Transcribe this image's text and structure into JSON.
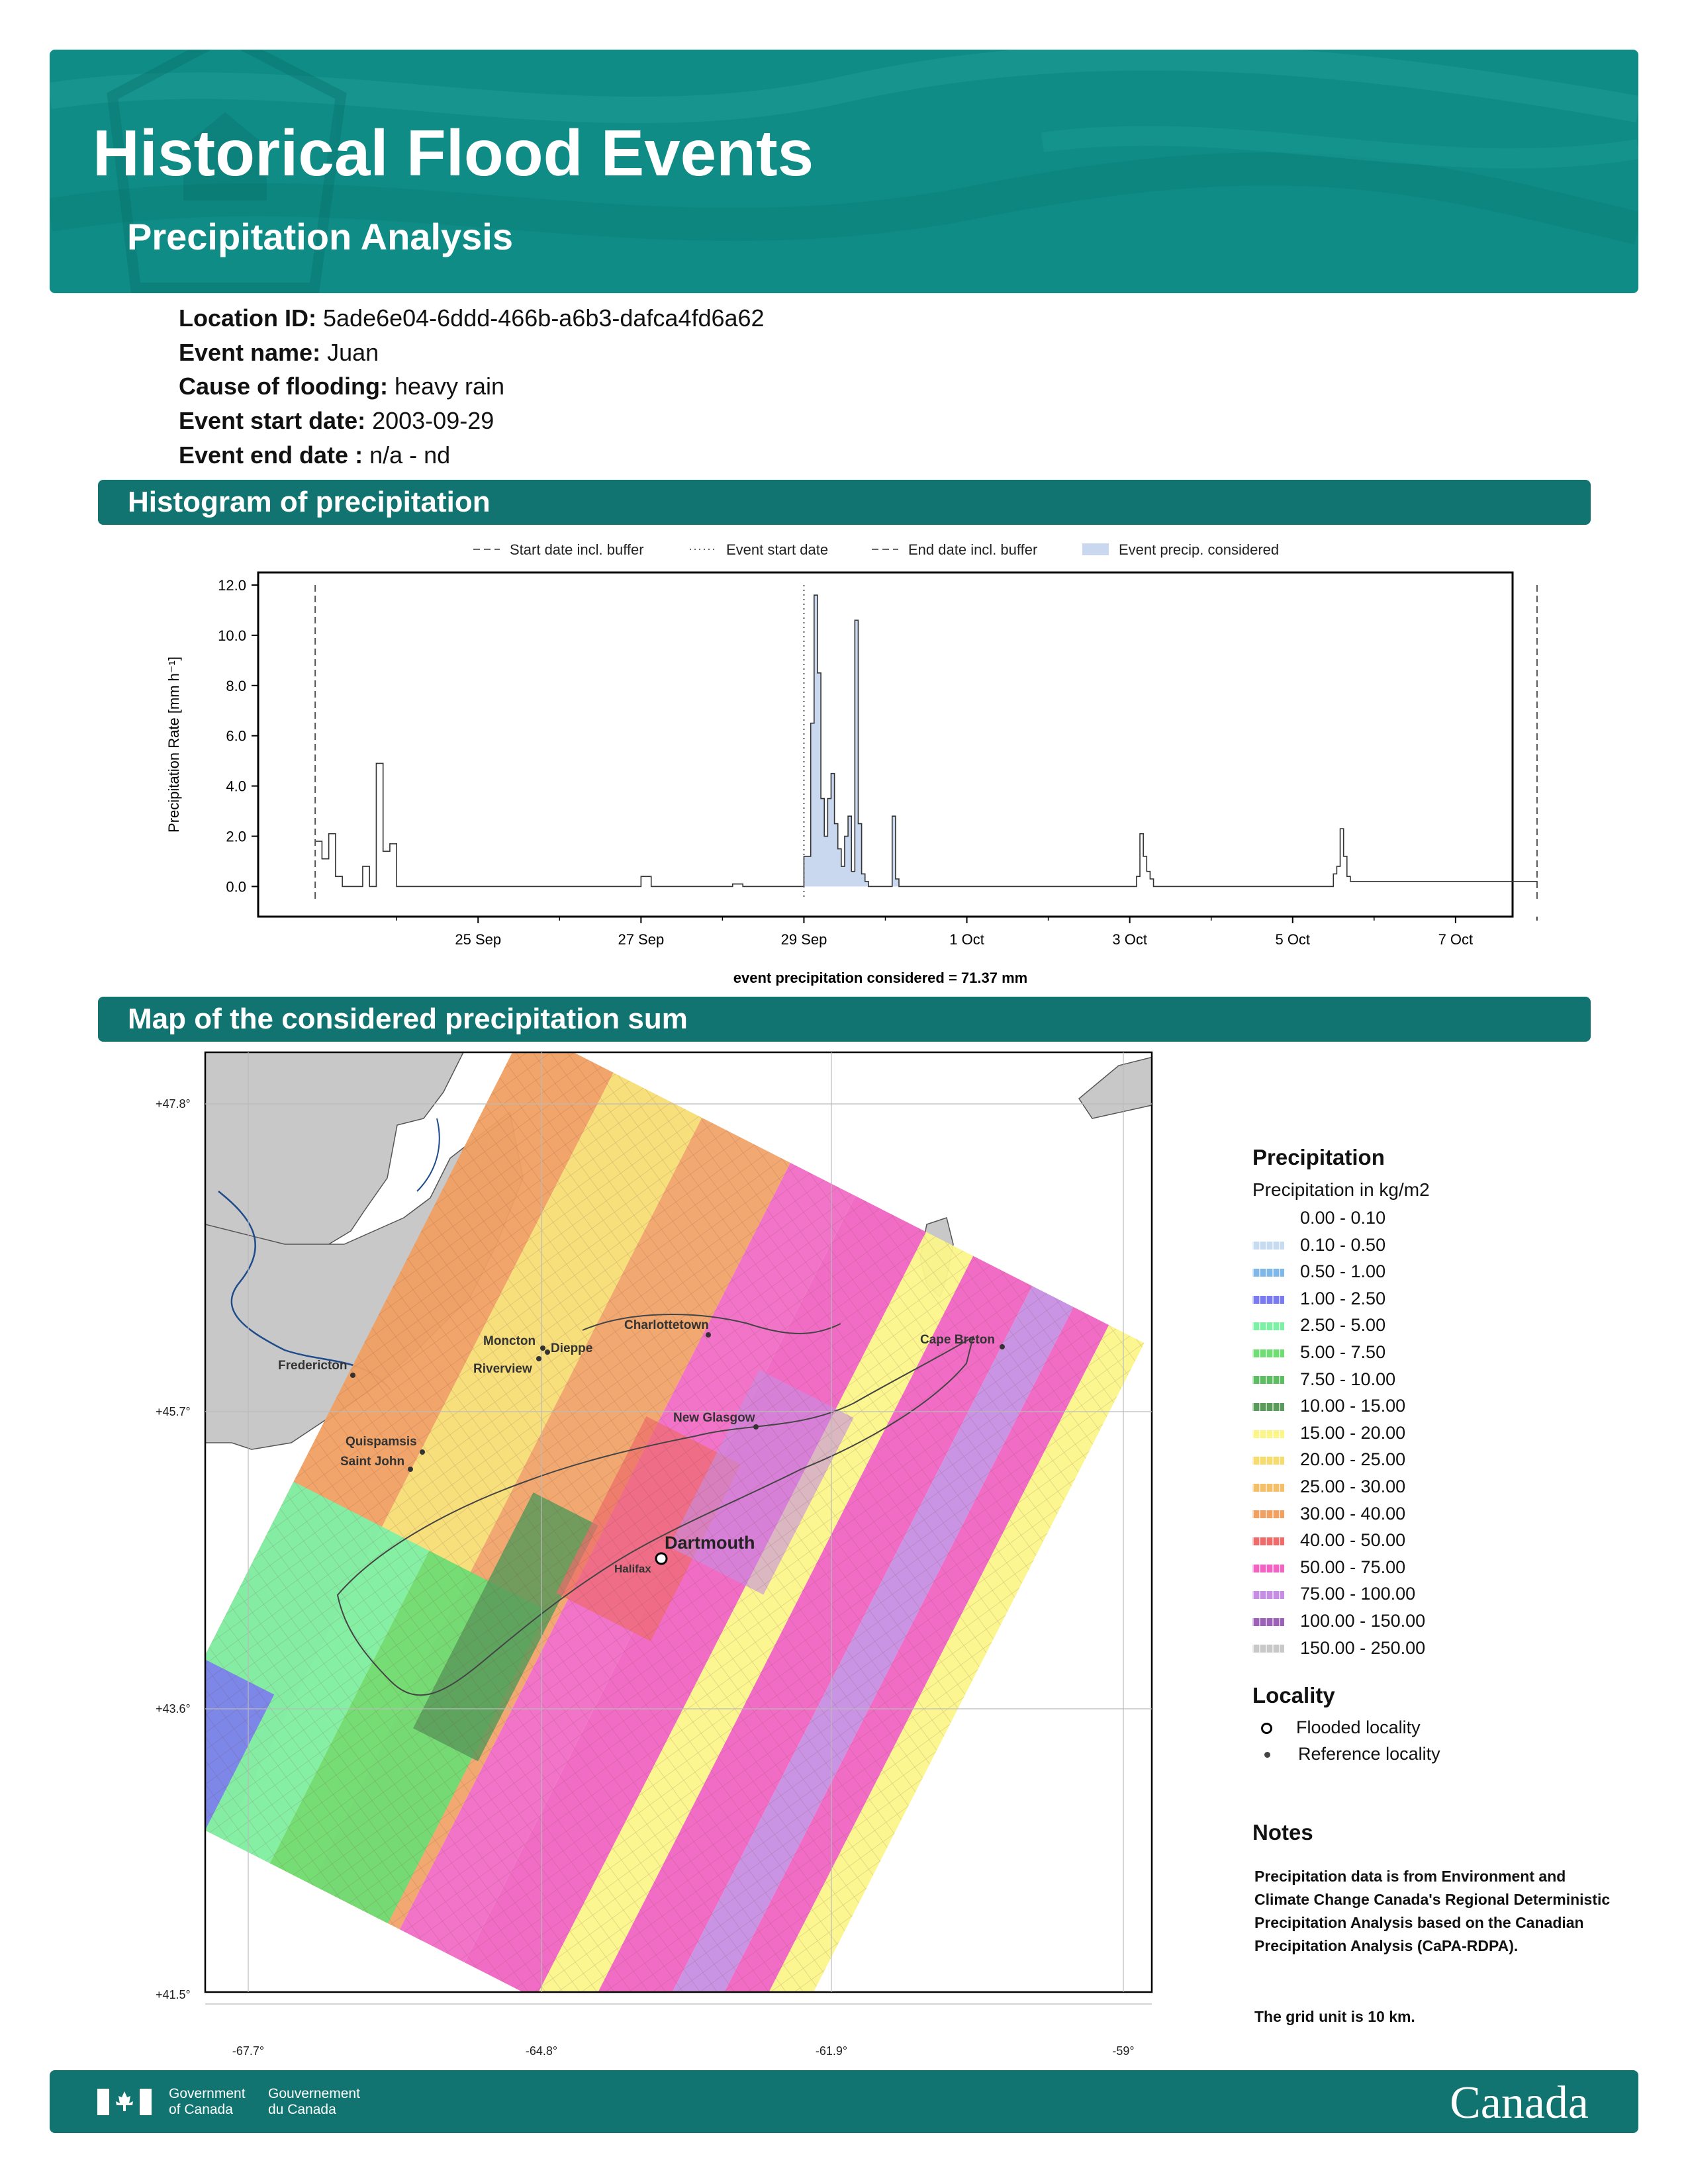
{
  "header": {
    "title": "Historical Flood Events",
    "subtitle": "Precipitation Analysis"
  },
  "info": [
    {
      "key": "Location ID:",
      "value": "5ade6e04-6ddd-466b-a6b3-dafca4fd6a62"
    },
    {
      "key": "Event name:",
      "value": "Juan"
    },
    {
      "key": "Cause of flooding:",
      "value": "heavy rain"
    },
    {
      "key": "Event start date:",
      "value": "2003-09-29"
    },
    {
      "key": "Event end date :",
      "value": "n/a - nd"
    }
  ],
  "sections": {
    "histogram": "Histogram of precipitation",
    "map": "Map of the considered precipitation sum"
  },
  "chart_data": {
    "type": "line",
    "ylabel": "Precipitation Rate [mm h⁻¹]",
    "xlabel": "event precipitation considered = 71.37 mm",
    "ylim": [
      -1.2,
      12.5
    ],
    "yticks": [
      "0.0",
      "2.0",
      "4.0",
      "6.0",
      "8.0",
      "10.0",
      "12.0"
    ],
    "xticks": [
      "25 Sep",
      "27 Sep",
      "29 Sep",
      "1 Oct",
      "3 Oct",
      "5 Oct",
      "7 Oct"
    ],
    "xtick_days": [
      2,
      4,
      6,
      8,
      10,
      12,
      14
    ],
    "xlim_days": [
      -0.7,
      14.7
    ],
    "legend": [
      {
        "label": "Start date incl. buffer",
        "style": "dashed"
      },
      {
        "label": "Event start date",
        "style": "dotted"
      },
      {
        "label": "End date incl. buffer",
        "style": "dashed"
      },
      {
        "label": "Event precip. considered",
        "style": "fill"
      }
    ],
    "markers": {
      "start_buffer": "2003-09-23",
      "event_start": "2003-09-29",
      "end_buffer": "2003-10-08"
    },
    "series_dates": [
      "2003-09-23 00:00",
      "2003-09-23 02:00",
      "2003-09-23 04:00",
      "2003-09-23 06:00",
      "2003-09-23 08:00",
      "2003-09-23 10:00",
      "2003-09-23 12:00",
      "2003-09-23 14:00",
      "2003-09-23 16:00",
      "2003-09-23 18:00",
      "2003-09-23 20:00",
      "2003-09-23 22:00",
      "2003-09-24 00:00",
      "2003-09-24 02:00",
      "2003-09-24 04:00",
      "2003-09-24 06:00",
      "2003-09-26 21:00",
      "2003-09-27 00:00",
      "2003-09-27 03:00",
      "2003-09-28 00:00",
      "2003-09-28 03:00",
      "2003-09-28 06:00",
      "2003-09-28 22:00",
      "2003-09-29 00:00",
      "2003-09-29 02:00",
      "2003-09-29 03:00",
      "2003-09-29 04:00",
      "2003-09-29 05:00",
      "2003-09-29 06:00",
      "2003-09-29 07:00",
      "2003-09-29 08:00",
      "2003-09-29 09:00",
      "2003-09-29 10:00",
      "2003-09-29 11:00",
      "2003-09-29 12:00",
      "2003-09-29 13:00",
      "2003-09-29 14:00",
      "2003-09-29 15:00",
      "2003-09-29 16:00",
      "2003-09-29 17:00",
      "2003-09-29 18:00",
      "2003-09-29 19:00",
      "2003-09-29 20:00",
      "2003-09-29 21:00",
      "2003-09-29 22:00",
      "2003-09-30 00:00",
      "2003-09-30 02:00",
      "2003-09-30 03:00",
      "2003-09-30 04:00",
      "2003-10-03 02:00",
      "2003-10-03 03:00",
      "2003-10-03 04:00",
      "2003-10-03 05:00",
      "2003-10-03 06:00",
      "2003-10-03 07:00",
      "2003-10-05 12:00",
      "2003-10-05 13:00",
      "2003-10-05 14:00",
      "2003-10-05 15:00",
      "2003-10-05 16:00",
      "2003-10-05 17:00",
      "2003-10-08 00:00"
    ],
    "series_values": [
      1.8,
      1.1,
      2.1,
      0.4,
      0.0,
      0.0,
      0.0,
      0.8,
      0.0,
      4.9,
      1.4,
      1.7,
      0.0,
      0.0,
      0.0,
      0.0,
      0.0,
      0.4,
      0.0,
      0.0,
      0.1,
      0.0,
      0.0,
      1.2,
      6.5,
      11.6,
      8.5,
      3.5,
      2.0,
      3.5,
      4.5,
      2.5,
      1.5,
      0.8,
      2.0,
      2.8,
      0.6,
      10.6,
      2.5,
      0.5,
      0.2,
      0.0,
      0.0,
      0.0,
      0.0,
      0.0,
      2.8,
      0.3,
      0.0,
      0.4,
      2.1,
      1.2,
      0.6,
      0.3,
      0.0,
      0.5,
      0.8,
      2.3,
      1.2,
      0.4,
      0.2,
      0.0
    ]
  },
  "map": {
    "lat_ticks": [
      "+47.8°",
      "+45.7°",
      "+43.6°",
      "+41.5°"
    ],
    "lon_ticks": [
      "-67.7°",
      "-64.8°",
      "-61.9°",
      "-59°"
    ],
    "places": [
      {
        "name": "Charlottetown",
        "kind": "reference"
      },
      {
        "name": "Moncton",
        "kind": "reference"
      },
      {
        "name": "Dieppe",
        "kind": "reference"
      },
      {
        "name": "Riverview",
        "kind": "reference"
      },
      {
        "name": "Fredericton",
        "kind": "reference"
      },
      {
        "name": "Cape Breton",
        "kind": "reference"
      },
      {
        "name": "New Glasgow",
        "kind": "reference"
      },
      {
        "name": "Quispamsis",
        "kind": "reference"
      },
      {
        "name": "Saint John",
        "kind": "reference"
      },
      {
        "name": "Dartmouth",
        "kind": "flooded"
      },
      {
        "name": "Halifax",
        "kind": "reference"
      }
    ]
  },
  "legend": {
    "precip_title": "Precipitation",
    "precip_sub": "Precipitation in kg/m2",
    "classes": [
      {
        "label": "0.00 - 0.10",
        "color": "#ffffff"
      },
      {
        "label": "0.10 - 0.50",
        "color": "#c6dbef"
      },
      {
        "label": "0.50 - 1.00",
        "color": "#7fb8e8"
      },
      {
        "label": "1.00 - 2.50",
        "color": "#7b7bf0"
      },
      {
        "label": "2.50 - 5.00",
        "color": "#7ef0a6"
      },
      {
        "label": "5.00 - 7.50",
        "color": "#6fdc74"
      },
      {
        "label": "7.50 - 10.00",
        "color": "#5dbd62"
      },
      {
        "label": "10.00 - 15.00",
        "color": "#5a9a5a"
      },
      {
        "label": "15.00 - 20.00",
        "color": "#fbf58a"
      },
      {
        "label": "20.00 - 25.00",
        "color": "#f6dc6e"
      },
      {
        "label": "25.00 - 30.00",
        "color": "#f3c069"
      },
      {
        "label": "30.00 - 40.00",
        "color": "#f0a062"
      },
      {
        "label": "40.00 - 50.00",
        "color": "#ee6b6b"
      },
      {
        "label": "50.00 - 75.00",
        "color": "#f065c2"
      },
      {
        "label": "75.00 - 100.00",
        "color": "#c68ee3"
      },
      {
        "label": "100.00 - 150.00",
        "color": "#9b62b8"
      },
      {
        "label": "150.00 - 250.00",
        "color": "#c8c8c8"
      }
    ],
    "locality_title": "Locality",
    "flooded": "Flooded locality",
    "reference": "Reference locality"
  },
  "notes": {
    "title": "Notes",
    "text1": "Precipitation data is from Environment and Climate Change Canada's Regional Deterministic Precipitation Analysis based on the Canadian Precipitation Analysis (CaPA-RDPA).",
    "text2": "The grid unit is 10 km."
  },
  "footer": {
    "gov_en_1": "Government",
    "gov_en_2": "of Canada",
    "gov_fr_1": "Gouvernement",
    "gov_fr_2": "du Canada",
    "wordmark": "Canada"
  }
}
